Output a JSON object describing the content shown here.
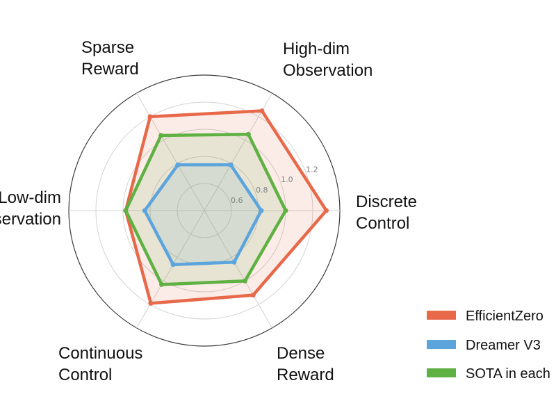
{
  "chart_data": {
    "type": "radar",
    "title": "",
    "axes": [
      {
        "label_lines": [
          "Discrete",
          "Control"
        ]
      },
      {
        "label_lines": [
          "High-dim",
          "Observation"
        ]
      },
      {
        "label_lines": [
          "Sparse",
          "Reward"
        ]
      },
      {
        "label_lines": [
          "Low-dim",
          "Observation"
        ]
      },
      {
        "label_lines": [
          "Continuous",
          "Control"
        ]
      },
      {
        "label_lines": [
          "Dense",
          "Reward"
        ]
      }
    ],
    "radial_ticks": [
      {
        "value": 0.6,
        "label": "0.6"
      },
      {
        "value": 0.8,
        "label": "0.8"
      },
      {
        "value": 1.0,
        "label": "1.0"
      },
      {
        "value": 1.2,
        "label": "1.2"
      }
    ],
    "rmin": 0.4,
    "rmax": 1.4,
    "grid": true,
    "legend_position": "bottom-right",
    "series": [
      {
        "name": "EfficientZero",
        "color": "#e8694a",
        "values": [
          1.3,
          1.25,
          1.2,
          0.98,
          1.19,
          1.12
        ]
      },
      {
        "name": "Dreamer V3",
        "color": "#5ba4dc",
        "values": [
          0.82,
          0.79,
          0.79,
          0.84,
          0.86,
          0.84
        ]
      },
      {
        "name": "SOTA in each",
        "color": "#5fb143",
        "values": [
          1.0,
          1.05,
          1.04,
          0.98,
          1.03,
          1.0
        ]
      }
    ]
  }
}
